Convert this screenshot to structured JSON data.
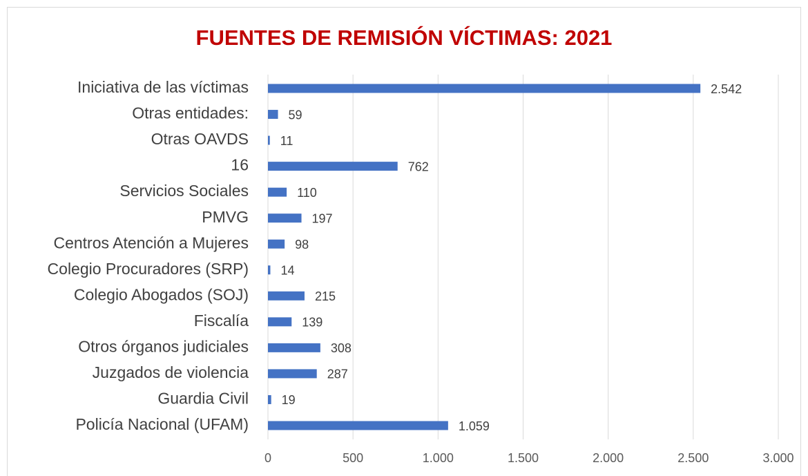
{
  "chart_data": {
    "type": "bar",
    "orientation": "horizontal",
    "title": "FUENTES DE REMISIÓN VÍCTIMAS: 2021",
    "categories": [
      "Iniciativa de las víctimas",
      "Otras entidades:",
      "Otras OAVDS",
      "16",
      "Servicios Sociales",
      "PMVG",
      "Centros Atención a Mujeres",
      "Colegio Procuradores (SRP)",
      "Colegio Abogados (SOJ)",
      "Fiscalía",
      "Otros órganos judiciales",
      "Juzgados de violencia",
      "Guardia Civil",
      "Policía Nacional (UFAM)"
    ],
    "values": [
      2542,
      59,
      11,
      762,
      110,
      197,
      98,
      14,
      215,
      139,
      308,
      287,
      19,
      1059
    ],
    "value_labels": [
      "2.542",
      "59",
      "11",
      "762",
      "110",
      "197",
      "98",
      "14",
      "215",
      "139",
      "308",
      "287",
      "19",
      "1.059"
    ],
    "color": "#4472c4",
    "xlim": [
      0,
      3000
    ],
    "xticks": [
      0,
      500,
      {
        "value": 1000,
        "label": "1.000"
      },
      {
        "value": 1500,
        "label": "1.500"
      },
      {
        "value": 2000,
        "label": "2.000"
      },
      {
        "value": 2500,
        "label": "2.500"
      },
      {
        "value": 3000,
        "label": "3.000"
      }
    ],
    "grid": true
  }
}
